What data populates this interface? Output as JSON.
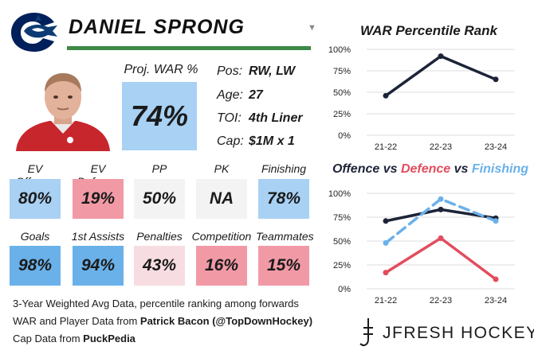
{
  "player": {
    "name": "DANIEL SPRONG",
    "team_logo": "canucks-orca-logo",
    "proj_war_label": "Proj. WAR %",
    "proj_war_value": "74%",
    "proj_war_color": "#a8d1f4"
  },
  "info": [
    {
      "label": "Pos:",
      "value": "RW, LW"
    },
    {
      "label": "Age:",
      "value": "27"
    },
    {
      "label": "TOI:",
      "value": "4th Liner"
    },
    {
      "label": "Cap:",
      "value": "$1M x 1"
    }
  ],
  "metrics": [
    {
      "label": "EV Offence",
      "value": "80%",
      "color": "#a8d1f4"
    },
    {
      "label": "EV Defence",
      "value": "19%",
      "color": "#f19aa6"
    },
    {
      "label": "PP",
      "value": "50%",
      "color": "#f3f3f3"
    },
    {
      "label": "PK",
      "value": "NA",
      "color": "#f3f3f3"
    },
    {
      "label": "Finishing",
      "value": "78%",
      "color": "#a8d1f4"
    },
    {
      "label": "Goals",
      "value": "98%",
      "color": "#6ab1ea"
    },
    {
      "label": "1st Assists",
      "value": "94%",
      "color": "#6ab1ea"
    },
    {
      "label": "Penalties",
      "value": "43%",
      "color": "#f7dde1"
    },
    {
      "label": "Competition",
      "value": "16%",
      "color": "#f19aa6"
    },
    {
      "label": "Teammates",
      "value": "15%",
      "color": "#f19aa6"
    }
  ],
  "footer": {
    "line1": "3-Year Weighted Avg Data, percentile ranking among forwards",
    "line2_prefix": "WAR and Player Data from ",
    "line2_source": "Patrick Bacon (@TopDownHockey)",
    "line3_prefix": "Cap Data from ",
    "line3_source": "PuckPedia"
  },
  "brand": {
    "name": "JFRESH HOCKEY"
  },
  "chart_title_2": {
    "part1": "Offence",
    "sep1": " vs ",
    "part2": "Defence",
    "sep2": " vs ",
    "part3": "Finishing",
    "color1": "#1d2438",
    "color2": "#e24d5e",
    "color3": "#6ab1ea"
  },
  "chart_data": [
    {
      "type": "line",
      "title": "WAR Percentile Rank",
      "categories": [
        "21-22",
        "22-23",
        "23-24"
      ],
      "series": [
        {
          "name": "WAR",
          "values": [
            46,
            92,
            65
          ],
          "color": "#1d2438",
          "dashed": false
        }
      ],
      "ylim": [
        0,
        100
      ],
      "yticks": [
        "0%",
        "25%",
        "50%",
        "75%",
        "100%"
      ],
      "grid": true
    },
    {
      "type": "line",
      "title": "Offence vs Defence vs Finishing",
      "categories": [
        "21-22",
        "22-23",
        "23-24"
      ],
      "series": [
        {
          "name": "Offence",
          "values": [
            71,
            83,
            74
          ],
          "color": "#1d2438",
          "dashed": false
        },
        {
          "name": "Defence",
          "values": [
            17,
            53,
            10
          ],
          "color": "#e24d5e",
          "dashed": false
        },
        {
          "name": "Finishing",
          "values": [
            48,
            94,
            71
          ],
          "color": "#6ab1ea",
          "dashed": true
        }
      ],
      "ylim": [
        0,
        100
      ],
      "yticks": [
        "0%",
        "25%",
        "50%",
        "75%",
        "100%"
      ],
      "grid": true
    }
  ]
}
